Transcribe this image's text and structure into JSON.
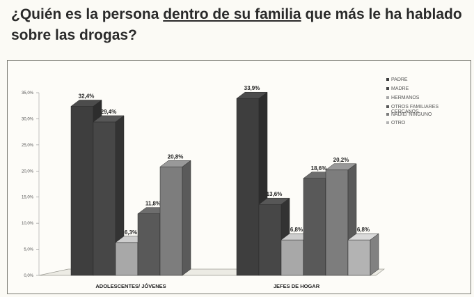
{
  "title": {
    "part1": "¿Quién es la persona ",
    "underlined": "dentro de su familia",
    "part2": " que más le ha hablado sobre las drogas?"
  },
  "chart_data": {
    "type": "bar",
    "categories": [
      "ADOLESCENTES/ JÓVENES",
      "JEFES DE HOGAR"
    ],
    "series": [
      {
        "name": "PADRE",
        "values": [
          32.4,
          33.9
        ],
        "labels": [
          "32,4%",
          "33,9%"
        ]
      },
      {
        "name": "MADRE",
        "values": [
          29.4,
          13.6
        ],
        "labels": [
          "29,4%",
          "13,6%"
        ]
      },
      {
        "name": "HERMANOS",
        "values": [
          6.3,
          6.8
        ],
        "labels": [
          "6,3%",
          "6,8%"
        ]
      },
      {
        "name": "OTROS FAMILIARES CERCANOS",
        "values": [
          11.8,
          18.6
        ],
        "labels": [
          "11,8%",
          "18,6%"
        ]
      },
      {
        "name": "NADIE/ NINGUNO",
        "values": [
          20.8,
          20.2
        ],
        "labels": [
          "20,8%",
          "20,2%"
        ]
      },
      {
        "name": "OTRO",
        "values": [
          0,
          6.8
        ],
        "labels": [
          "",
          "6,8%"
        ]
      }
    ],
    "ylim": [
      0,
      35
    ],
    "y_ticks": [
      0,
      5,
      10,
      15,
      20,
      25,
      30,
      35
    ],
    "y_tick_labels": [
      "0,0%",
      "5,0%",
      "10,0%",
      "15,0%",
      "20,0%",
      "25,0%",
      "30,0%",
      "35,0%"
    ],
    "legend_position": "right",
    "colors": [
      "#3e3e3e",
      "#474747",
      "#a8a8a8",
      "#595959",
      "#7d7d7d",
      "#b3b3b3"
    ]
  }
}
